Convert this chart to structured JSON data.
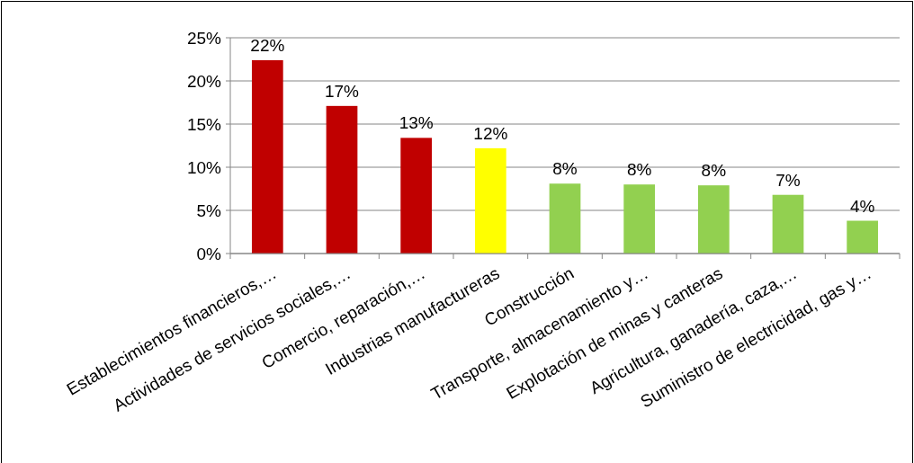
{
  "chart_data": {
    "type": "bar",
    "categories": [
      "Establecimientos financieros,…",
      "Actividades de servicios sociales,…",
      "Comercio, reparación,…",
      "Industrias manufactureras",
      "Construcción",
      "Transporte, almacenamiento y…",
      "Explotación de minas y canteras",
      "Agricultura, ganadería, caza,…",
      "Suministro de electricidad, gas y…"
    ],
    "values": [
      22.4,
      17.1,
      13.4,
      12.2,
      8.1,
      8.0,
      7.9,
      6.8,
      3.8
    ],
    "value_labels": [
      "22%",
      "17%",
      "13%",
      "12%",
      "8%",
      "8%",
      "8%",
      "7%",
      "4%"
    ],
    "colors": [
      "#c00000",
      "#c00000",
      "#c00000",
      "#ffff00",
      "#92d050",
      "#92d050",
      "#92d050",
      "#92d050",
      "#92d050"
    ],
    "ylim": [
      0,
      25
    ],
    "yticks": [
      {
        "value": 0,
        "label": "0%"
      },
      {
        "value": 5,
        "label": "5%"
      },
      {
        "value": 10,
        "label": "10%"
      },
      {
        "value": 15,
        "label": "15%"
      },
      {
        "value": 20,
        "label": "20%"
      },
      {
        "value": 25,
        "label": "25%"
      }
    ],
    "grid": "y"
  }
}
